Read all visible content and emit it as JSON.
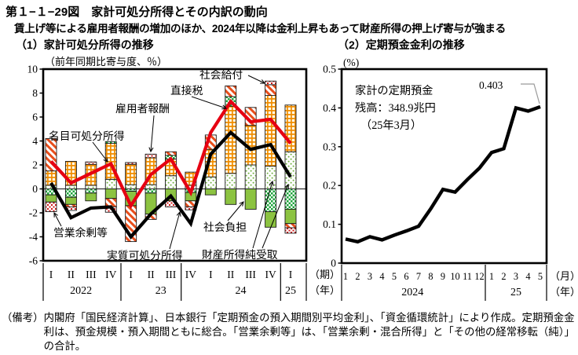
{
  "figure": {
    "title": "第１−１−29図　家計可処分所得とその内訳の動向",
    "subtitle": "賃上げ等による雇用者報酬の増加のほか、2024年以降は金利上昇もあって財産所得の押上げ寄与が強まる",
    "note_label": "（備考）",
    "note_text": "内閣府「国民経済計算」、日本銀行「定期預金の預入期間別平均金利」、「資金循環統計」により作成。定期預金金利は、預金規模・預入期間ともに総合。「営業余剰等」は、「営業余剰・混合所得」と「その他の経常移転（純）」の合計。"
  },
  "chart_data": [
    {
      "id": "household-disposable-income",
      "type": "bar",
      "title": "（1）家計可処分所得の推移",
      "unit_label": "（前年同期比寄与度、％）",
      "ylim": [
        -6,
        10
      ],
      "yticks": [
        10,
        8,
        6,
        4,
        2,
        0,
        -2,
        -4,
        -6
      ],
      "categories": [
        "I",
        "II",
        "III",
        "IV",
        "I",
        "II",
        "III",
        "IV",
        "I",
        "II",
        "III",
        "IV",
        "I"
      ],
      "year_groups": [
        {
          "label": "2022",
          "span": 4
        },
        {
          "label": "23",
          "span": 4
        },
        {
          "label": "24",
          "span": 4
        },
        {
          "label": "25",
          "span": 1
        }
      ],
      "axis_unit_period": "（期）",
      "axis_unit_year": "（年）",
      "series": [
        {
          "name": "雇用者報酬",
          "pattern": "plaid-orange",
          "values": [
            1.2,
            2.0,
            1.75,
            3.0,
            1.7,
            2.25,
            1.4,
            1.1,
            2.3,
            5.6,
            3.3,
            5.9,
            3.9
          ]
        },
        {
          "name": "財産所得純受取",
          "pattern": "dots-green",
          "values": [
            0.3,
            0.3,
            0.3,
            0.8,
            0.35,
            0.35,
            1.1,
            0.3,
            1.0,
            1.3,
            2.0,
            1.9,
            3.1
          ]
        },
        {
          "name": "直接税",
          "pattern": "check-green",
          "values": [
            -0.5,
            -0.7,
            -0.35,
            0.15,
            -0.2,
            -0.35,
            0.3,
            -0.3,
            0.0,
            0.8,
            0.0,
            -1.9,
            -1.7
          ]
        },
        {
          "name": "社会給付",
          "pattern": "stripe-red",
          "values": [
            2.7,
            -0.2,
            0.0,
            -0.7,
            -3.0,
            -0.45,
            0.3,
            -0.5,
            1.2,
            0.9,
            1.5,
            0.9,
            -0.35
          ]
        },
        {
          "name": "社会負担",
          "pattern": "solid-green",
          "values": [
            -0.6,
            -0.6,
            -0.65,
            -0.8,
            -1.2,
            -1.75,
            -1.0,
            -0.7,
            -0.5,
            -1.3,
            -1.7,
            -1.3,
            -1.2
          ]
        },
        {
          "name": "営業余剰等",
          "pattern": "dots-red",
          "values": [
            -0.8,
            -0.3,
            0.2,
            -0.45,
            0.15,
            0.3,
            -0.5,
            -0.25,
            0.0,
            0.0,
            0.0,
            0.3,
            -0.45
          ]
        }
      ],
      "stack_order": {
        "positive": [
          "財産所得純受取",
          "雇用者報酬",
          "直接税",
          "社会給付",
          "営業余剰等"
        ],
        "negative": [
          "直接税",
          "社会負担",
          "社会給付",
          "営業余剰等"
        ]
      },
      "lines": [
        {
          "name": "名目可処分所得",
          "color": "#e60012",
          "values": [
            2.3,
            0.5,
            1.3,
            2.1,
            -1.4,
            1.2,
            2.5,
            -0.3,
            4.7,
            7.3,
            5.6,
            5.8,
            3.8
          ]
        },
        {
          "name": "実質可処分所得",
          "color": "#000000",
          "values": [
            0.5,
            -2.4,
            -1.6,
            -1.5,
            -4.0,
            -2.1,
            -0.6,
            -2.9,
            2.9,
            4.7,
            3.3,
            3.7,
            1.0
          ]
        }
      ],
      "annotations": [
        "名目可処分所得",
        "雇用者報酬",
        "直接税",
        "社会給付",
        "営業余剰等",
        "実質可処分所得",
        "社会負担",
        "財産所得純受取"
      ]
    },
    {
      "id": "time-deposit-rate",
      "type": "line",
      "title": "（2）定期預金金利の推移",
      "unit_label": "(%)",
      "ylim": [
        0,
        0.5
      ],
      "yticks": [
        0.5,
        0.4,
        0.3,
        0.2,
        0.1,
        0
      ],
      "x_months": [
        "1",
        "2",
        "3",
        "4",
        "5",
        "6",
        "7",
        "8",
        "9",
        "10",
        "11",
        "12",
        "1",
        "2",
        "3",
        "4",
        "5"
      ],
      "year_groups": [
        {
          "label": "2024",
          "span": 12
        },
        {
          "label": "25",
          "span": 5
        }
      ],
      "axis_unit_month": "（月）",
      "axis_unit_year": "（年）",
      "annotation_lines": [
        "家計の定期預金",
        "残高：348.9兆円",
        "（25年3月）"
      ],
      "end_label": "0.403",
      "series": [
        {
          "name": "定期預金金利",
          "color": "#000000",
          "values": [
            0.062,
            0.055,
            0.068,
            0.06,
            0.072,
            0.083,
            0.095,
            0.14,
            0.19,
            0.183,
            0.215,
            0.245,
            0.285,
            0.295,
            0.4,
            0.392,
            0.403
          ]
        }
      ]
    }
  ]
}
